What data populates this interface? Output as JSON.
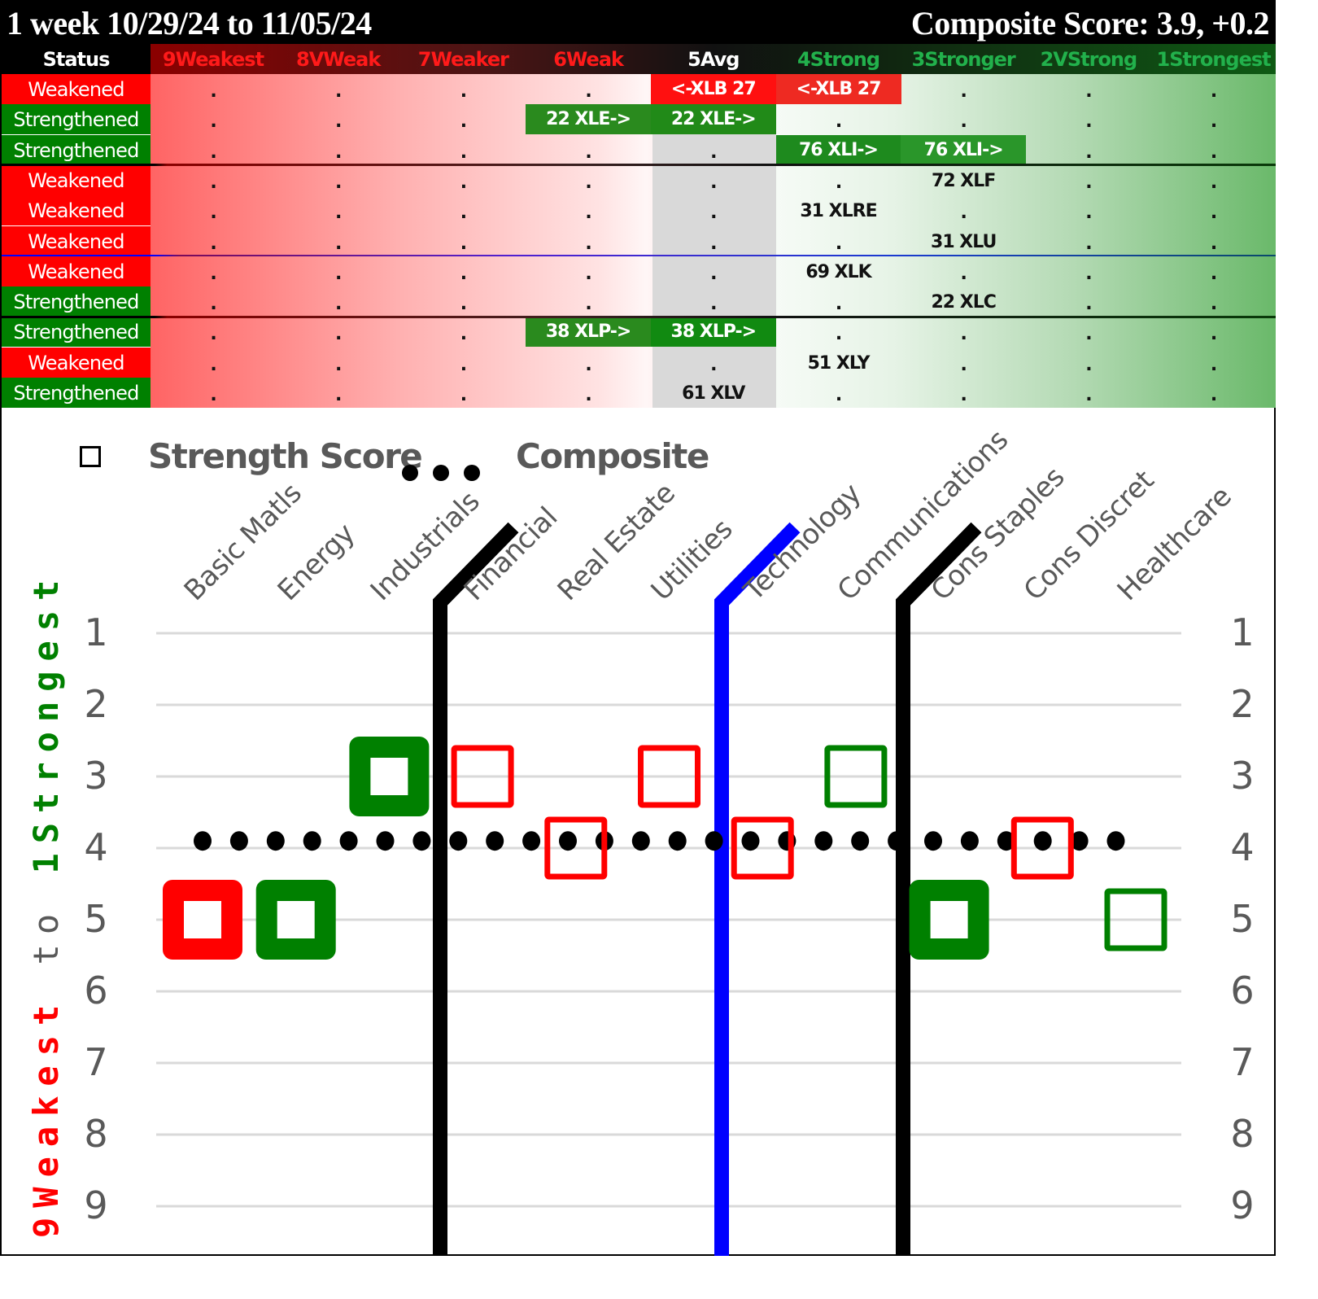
{
  "title": {
    "period": "1 week 10/29/24 to 11/05/24",
    "composite": "Composite Score: 3.9, +0.2"
  },
  "table": {
    "status_header": "Status",
    "columns": [
      {
        "label": "9Weakest",
        "color": "#ff1a1a"
      },
      {
        "label": "8VWeak",
        "color": "#ff1a1a"
      },
      {
        "label": "7Weaker",
        "color": "#ff1a1a"
      },
      {
        "label": "6Weak",
        "color": "#ff1a1a"
      },
      {
        "label": "5Avg",
        "color": "#ffffff"
      },
      {
        "label": "4Strong",
        "color": "#22b14c"
      },
      {
        "label": "3Stronger",
        "color": "#22b14c"
      },
      {
        "label": "2VStrong",
        "color": "#22b14c"
      },
      {
        "label": "1Strongest",
        "color": "#22b14c"
      }
    ],
    "rows": [
      {
        "status": "Weakened",
        "cells": [
          ".",
          ".",
          ".",
          ".",
          "<-XLB 27",
          "<-XLB 27",
          ".",
          ".",
          "."
        ],
        "highlight": {
          "4": "#ff1010",
          "5": "#ee2a22"
        }
      },
      {
        "status": "Strengthened",
        "cells": [
          ".",
          ".",
          ".",
          "22 XLE->",
          "22 XLE->",
          ".",
          ".",
          ".",
          "."
        ],
        "highlight": {
          "3": "#2a8a1e",
          "4": "#218a18"
        }
      },
      {
        "status": "Strengthened",
        "cells": [
          ".",
          ".",
          ".",
          ".",
          ".",
          "76 XLI->",
          "76 XLI->",
          ".",
          "."
        ],
        "highlight": {
          "5": "#1e8a1e",
          "6": "#2a962a"
        }
      },
      {
        "status": "Weakened",
        "cells": [
          ".",
          ".",
          ".",
          ".",
          ".",
          ".",
          "72 XLF",
          ".",
          "."
        ],
        "highlight": {}
      },
      {
        "status": "Weakened",
        "cells": [
          ".",
          ".",
          ".",
          ".",
          ".",
          "31 XLRE",
          ".",
          ".",
          "."
        ],
        "highlight": {}
      },
      {
        "status": "Weakened",
        "cells": [
          ".",
          ".",
          ".",
          ".",
          ".",
          ".",
          "31 XLU",
          ".",
          "."
        ],
        "highlight": {}
      },
      {
        "status": "Weakened",
        "cells": [
          ".",
          ".",
          ".",
          ".",
          ".",
          "69 XLK",
          ".",
          ".",
          "."
        ],
        "highlight": {}
      },
      {
        "status": "Strengthened",
        "cells": [
          ".",
          ".",
          ".",
          ".",
          ".",
          ".",
          "22 XLC",
          ".",
          "."
        ],
        "highlight": {}
      },
      {
        "status": "Strengthened",
        "cells": [
          ".",
          ".",
          ".",
          "38 XLP->",
          "38 XLP->",
          ".",
          ".",
          ".",
          "."
        ],
        "highlight": {
          "3": "#2a8a1e",
          "4": "#118a11"
        }
      },
      {
        "status": "Weakened",
        "cells": [
          ".",
          ".",
          ".",
          ".",
          ".",
          "51 XLY",
          ".",
          ".",
          "."
        ],
        "highlight": {}
      },
      {
        "status": "Strengthened",
        "cells": [
          ".",
          ".",
          ".",
          ".",
          "61 XLV",
          ".",
          ".",
          ".",
          "."
        ],
        "highlight": {}
      }
    ],
    "status_colors": {
      "Weakened": "#ff0000",
      "Strengthened": "#008000"
    },
    "separators": [
      {
        "after_row": 3,
        "color": "black"
      },
      {
        "after_row": 6,
        "color": "blue"
      },
      {
        "after_row": 8,
        "color": "black"
      }
    ]
  },
  "chart_data": {
    "type": "scatter",
    "title": "",
    "legend": [
      {
        "name": "Strength Score",
        "marker": "hollow-square"
      },
      {
        "name": "Composite",
        "marker": "dots"
      }
    ],
    "categories": [
      "Basic Matls",
      "Energy",
      "Industrials",
      "Financial",
      "Real Estate",
      "Utilities",
      "Technology",
      "Communications",
      "Cons Staples",
      "Cons Discret",
      "Healthcare"
    ],
    "series": [
      {
        "name": "Strength Score",
        "values": [
          5,
          5,
          3,
          3,
          4,
          3,
          4,
          3,
          5,
          4,
          5
        ],
        "status": [
          "Weakened",
          "Strengthened",
          "Strengthened",
          "Weakened",
          "Weakened",
          "Weakened",
          "Weakened",
          "Strengthened",
          "Strengthened",
          "Weakened",
          "Strengthened"
        ],
        "marker_style": [
          "thick",
          "thick",
          "thick",
          "thin",
          "thin",
          "thin",
          "thin",
          "thin",
          "thick",
          "thin",
          "thin"
        ]
      },
      {
        "name": "Composite",
        "value": 3.9
      }
    ],
    "ylabel": "9Weakest to 1Strongest",
    "ylabel_parts": {
      "weak": "9Weakest",
      "to": "to",
      "strong": "1Strongest"
    },
    "yticks": [
      "1",
      "2",
      "3",
      "4",
      "5",
      "6",
      "7",
      "8",
      "9"
    ],
    "ylim": [
      1,
      9
    ],
    "y_inverted": true,
    "grid": true,
    "dividers": [
      {
        "between": [
          "Industrials",
          "Financial"
        ],
        "color": "#000000"
      },
      {
        "between": [
          "Utilities",
          "Technology"
        ],
        "color": "#0000ff"
      },
      {
        "between": [
          "Communications",
          "Cons Staples"
        ],
        "color": "#000000"
      }
    ],
    "colors": {
      "weakened": "#ff0000",
      "strengthened": "#008000",
      "composite": "#000000",
      "grid": "#d9d9d9",
      "axis_text": "#595959"
    }
  }
}
